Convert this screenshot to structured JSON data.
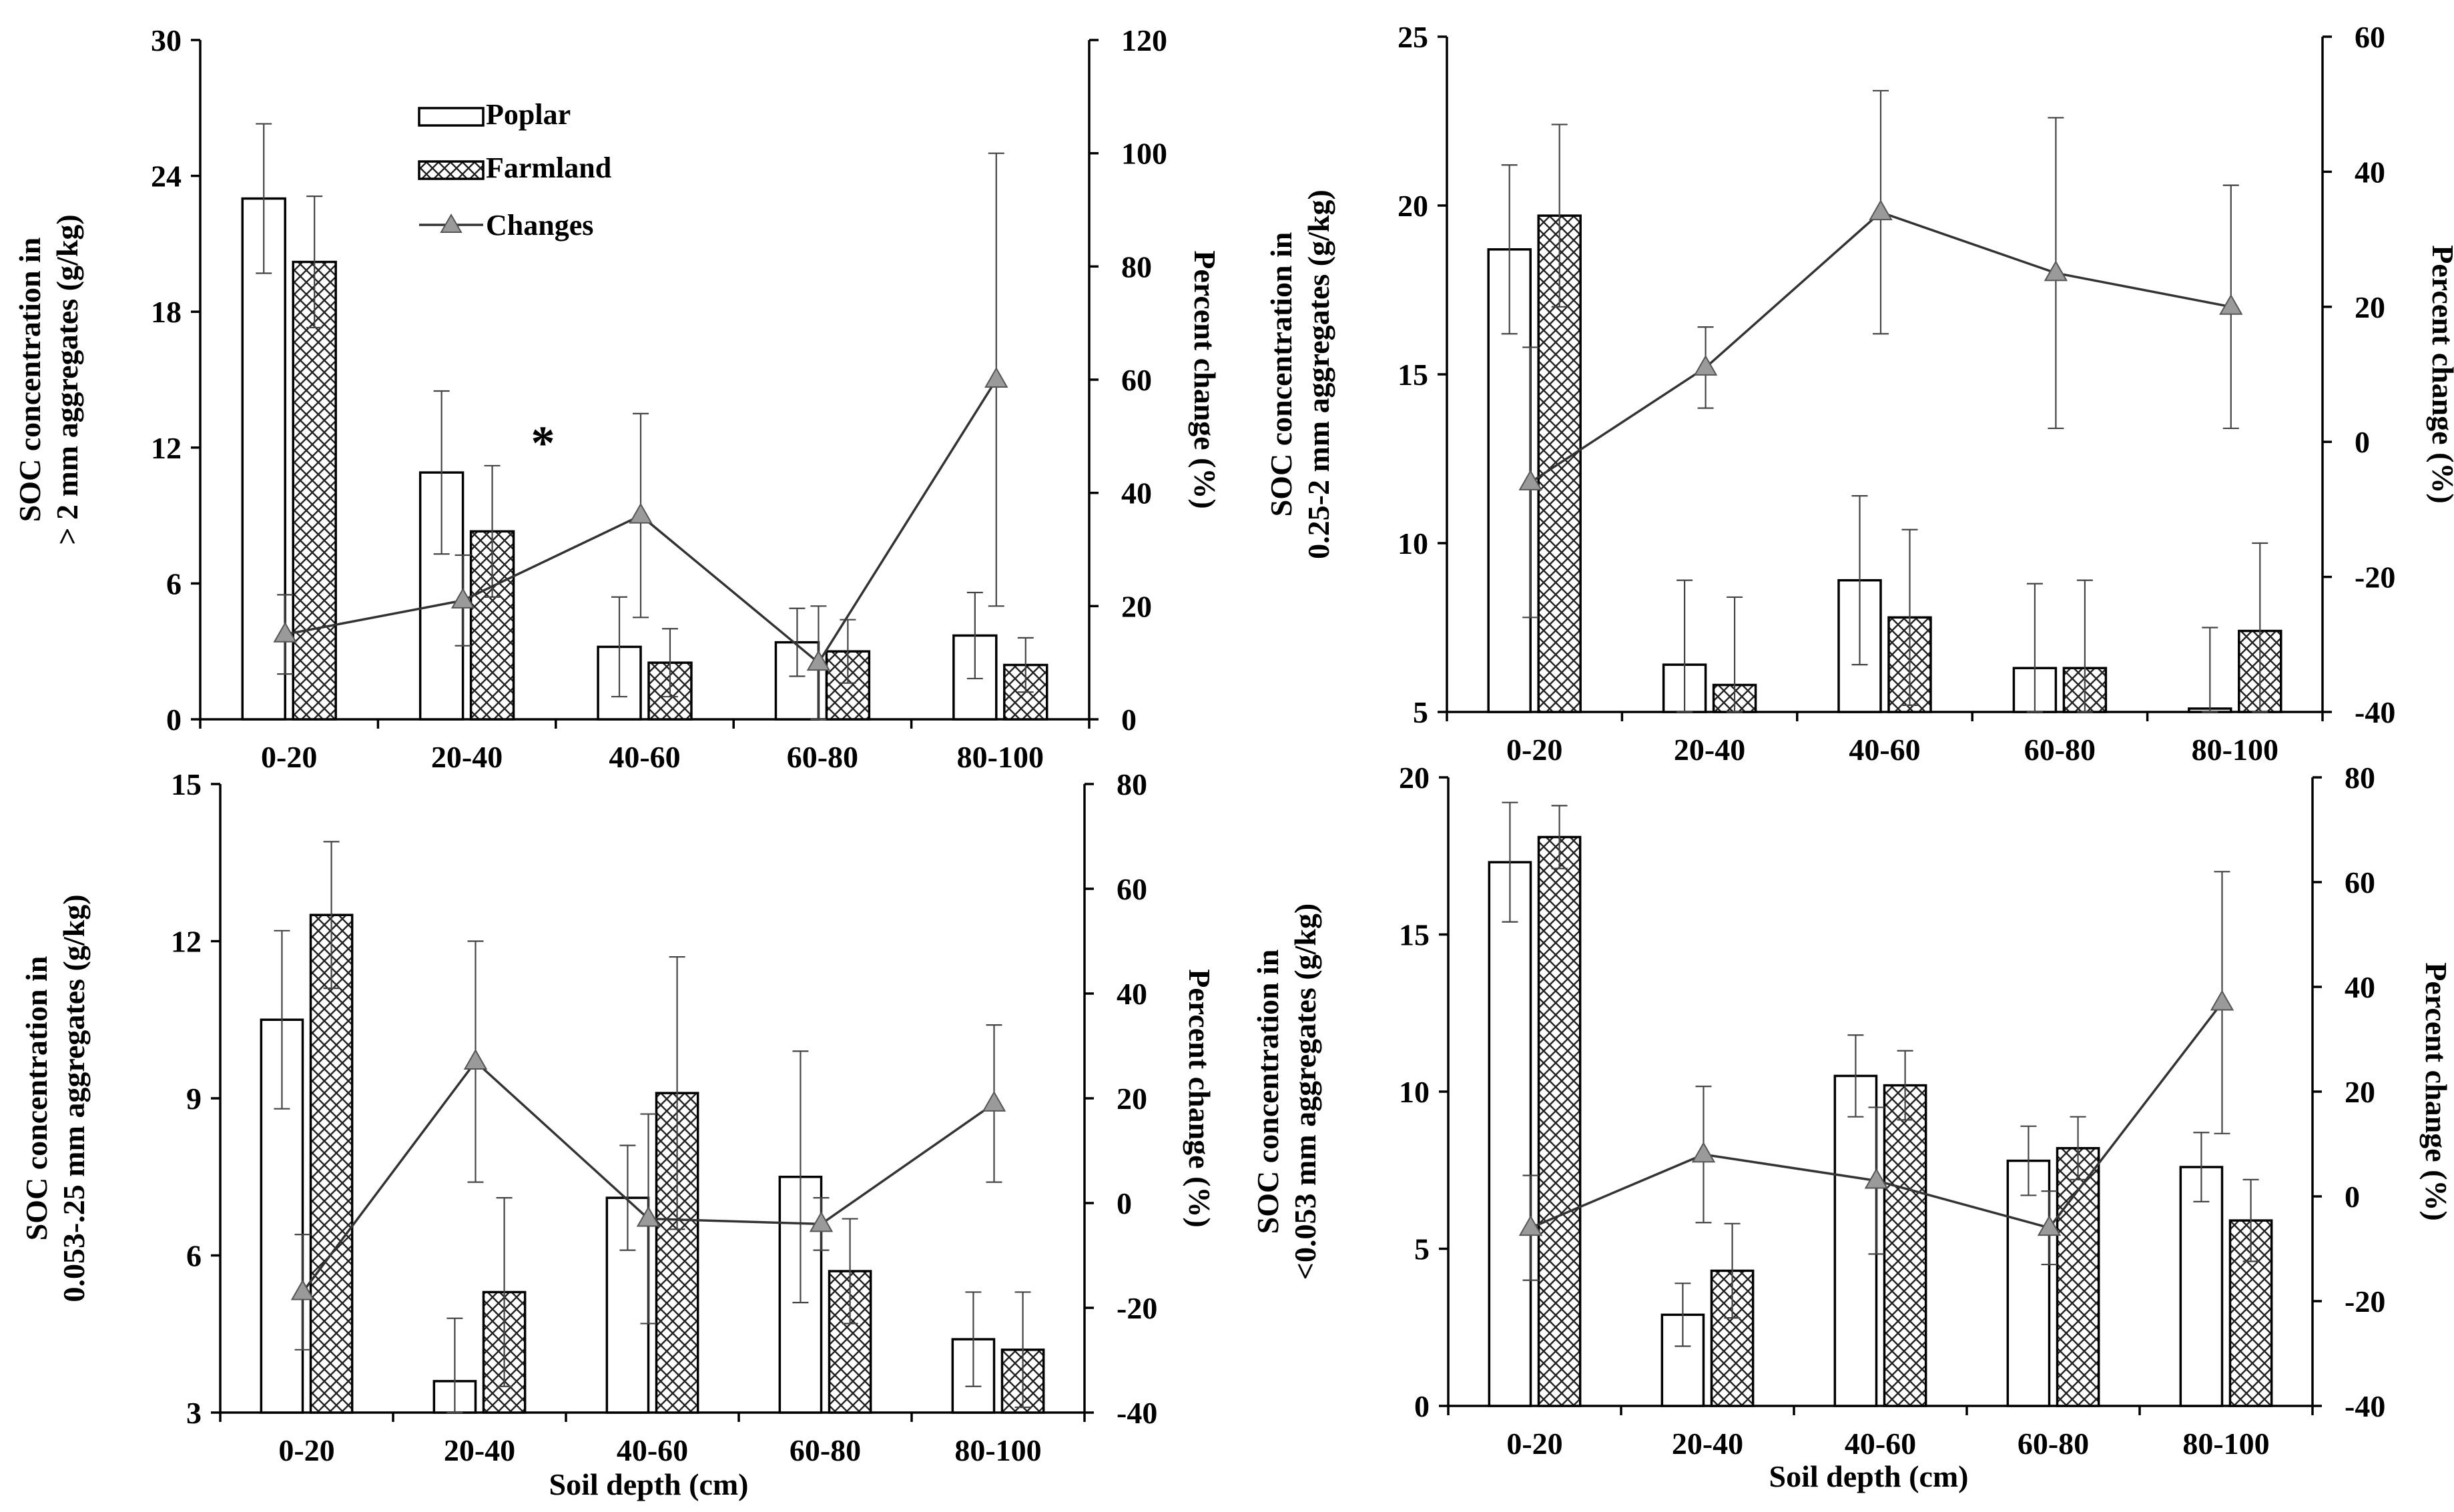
{
  "x_axis_label": "Soil depth (cm)",
  "legend": {
    "poplar": "Poplar",
    "farmland": "Farmland",
    "changes": "Changes"
  },
  "colors": {
    "poplar_fill": "#ffffff",
    "outline": "#000000",
    "marker": "#9a9a9a"
  },
  "chart_data": [
    {
      "type": "bar",
      "panel": "top-left",
      "categories": [
        "0-20",
        "20-40",
        "40-60",
        "60-80",
        "80-100"
      ],
      "ylabel_lines": [
        "SOC concentration in",
        "> 2 mm aggregates (g/kg)"
      ],
      "y2label": "Percent change (%)",
      "xlabel": "",
      "ylim": [
        0,
        30
      ],
      "yticks": [
        "0",
        "6",
        "12",
        "18",
        "24",
        "30"
      ],
      "y2lim": [
        0,
        120
      ],
      "y2ticks": [
        "0",
        "20",
        "40",
        "60",
        "80",
        "100",
        "120"
      ],
      "legend_placement": "top-left",
      "series": [
        {
          "name": "Poplar",
          "values": [
            23.0,
            10.9,
            3.2,
            3.4,
            3.7
          ],
          "errors": [
            3.3,
            3.6,
            2.2,
            1.5,
            1.9
          ]
        },
        {
          "name": "Farmland",
          "values": [
            20.2,
            8.3,
            2.5,
            3.0,
            2.4
          ],
          "errors": [
            2.9,
            2.9,
            1.5,
            1.4,
            1.2
          ]
        },
        {
          "name": "Changes",
          "axis": "secondary",
          "values": [
            15,
            21,
            36,
            10,
            60
          ],
          "errors": [
            7,
            8,
            18,
            10,
            40
          ]
        }
      ],
      "annotations": [
        {
          "text": "*",
          "category": "20-40"
        }
      ]
    },
    {
      "type": "bar",
      "panel": "top-right",
      "categories": [
        "0-20",
        "20-40",
        "40-60",
        "60-80",
        "80-100"
      ],
      "ylabel_lines": [
        "SOC concentration in",
        "0.25-2 mm aggregates (g/kg)"
      ],
      "y2label": "Percent change (%)",
      "xlabel": "",
      "ylim": [
        5,
        25
      ],
      "yticks": [
        "5",
        "10",
        "15",
        "20",
        "25"
      ],
      "y2lim": [
        -40,
        60
      ],
      "y2ticks": [
        "-40",
        "-20",
        "0",
        "20",
        "40",
        "60"
      ],
      "series": [
        {
          "name": "Poplar",
          "values": [
            18.7,
            6.4,
            8.9,
            6.3,
            5.1
          ],
          "errors": [
            2.5,
            2.5,
            2.5,
            2.5,
            2.4
          ]
        },
        {
          "name": "Farmland",
          "values": [
            19.7,
            5.8,
            7.8,
            6.3,
            7.4
          ],
          "errors": [
            2.7,
            2.6,
            2.6,
            2.6,
            2.6
          ]
        },
        {
          "name": "Changes",
          "axis": "secondary",
          "values": [
            -6,
            11,
            34,
            25,
            20
          ],
          "errors": [
            20,
            6,
            18,
            23,
            18
          ]
        }
      ]
    },
    {
      "type": "bar",
      "panel": "bottom-left",
      "categories": [
        "0-20",
        "20-40",
        "40-60",
        "60-80",
        "80-100"
      ],
      "ylabel_lines": [
        "SOC concentration in",
        "0.053-.25 mm aggregates (g/kg)"
      ],
      "y2label": "Percent change (%)",
      "xlabel": "Soil depth (cm)",
      "ylim": [
        3,
        15
      ],
      "yticks": [
        "3",
        "6",
        "9",
        "12",
        "15"
      ],
      "y2lim": [
        -40,
        80
      ],
      "y2ticks": [
        "-40",
        "-20",
        "0",
        "20",
        "40",
        "60",
        "80"
      ],
      "series": [
        {
          "name": "Poplar",
          "values": [
            10.5,
            3.6,
            7.1,
            7.5,
            4.4
          ],
          "errors": [
            1.7,
            1.2,
            1.0,
            2.4,
            0.9
          ]
        },
        {
          "name": "Farmland",
          "values": [
            12.5,
            5.3,
            9.1,
            5.7,
            4.2
          ],
          "errors": [
            1.4,
            1.8,
            2.6,
            1.0,
            1.1
          ]
        },
        {
          "name": "Changes",
          "axis": "secondary",
          "values": [
            -17,
            27,
            -3,
            -4,
            19
          ],
          "errors": [
            11,
            23,
            20,
            5,
            15
          ]
        }
      ]
    },
    {
      "type": "bar",
      "panel": "bottom-right",
      "categories": [
        "0-20",
        "20-40",
        "40-60",
        "60-80",
        "80-100"
      ],
      "ylabel_lines": [
        "SOC concentration in",
        "<0.053 mm aggregates (g/kg)"
      ],
      "y2label": "Percent change (%)",
      "xlabel": "Soil depth (cm)",
      "ylim": [
        0,
        20
      ],
      "yticks": [
        "0",
        "5",
        "10",
        "15",
        "20"
      ],
      "y2lim": [
        -40,
        80
      ],
      "y2ticks": [
        "-40",
        "-20",
        "0",
        "20",
        "40",
        "60",
        "80"
      ],
      "series": [
        {
          "name": "Poplar",
          "values": [
            17.3,
            2.9,
            10.5,
            7.8,
            7.6
          ],
          "errors": [
            1.9,
            1.0,
            1.3,
            1.1,
            1.1
          ]
        },
        {
          "name": "Farmland",
          "values": [
            18.1,
            4.3,
            10.2,
            8.2,
            5.9
          ],
          "errors": [
            1.0,
            1.5,
            1.1,
            1.0,
            1.3
          ]
        },
        {
          "name": "Changes",
          "axis": "secondary",
          "values": [
            -6,
            8,
            3,
            -6,
            37
          ],
          "errors": [
            10,
            13,
            14,
            7,
            25
          ]
        }
      ]
    }
  ]
}
